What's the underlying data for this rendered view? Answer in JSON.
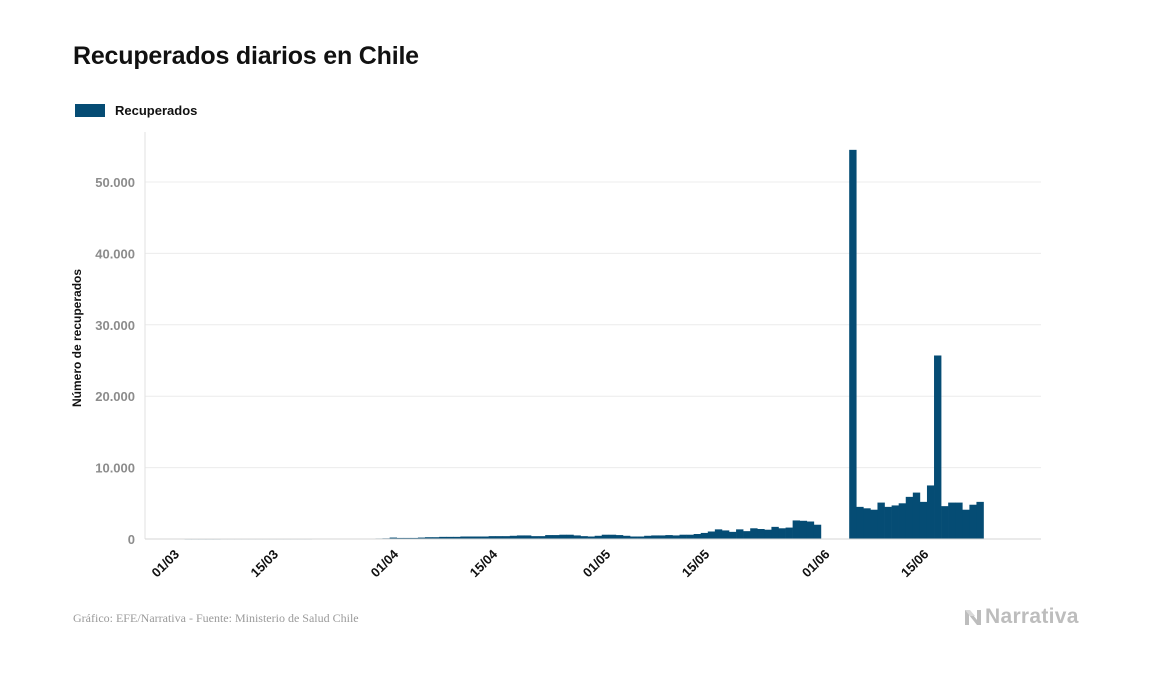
{
  "header": {
    "title": "Recuperados diarios en Chile"
  },
  "legend": {
    "label": "Recuperados"
  },
  "footer": {
    "credit": "Gráfico: EFE/Narrativa - Fuente: Ministerio de Salud Chile",
    "brand": "Narrativa"
  },
  "colors": {
    "bar": "#054c74",
    "grid": "#ececec",
    "ytick": "#8c8c8c",
    "text": "#111111",
    "brand": "#bdbdbd"
  },
  "icons": {
    "brand_logo": "narrativa-n-icon"
  },
  "chart_data": {
    "type": "bar",
    "title": "Recuperados diarios en Chile",
    "xlabel": "",
    "ylabel": "Número de recuperados",
    "ylim": [
      0,
      57000
    ],
    "yticks": [
      0,
      10000,
      20000,
      30000,
      40000,
      50000
    ],
    "ytick_labels": [
      "0",
      "10.000",
      "20.000",
      "30.000",
      "40.000",
      "50.000"
    ],
    "xticks": [
      {
        "date": "2020-03-01",
        "label": "01/03"
      },
      {
        "date": "2020-03-15",
        "label": "15/03"
      },
      {
        "date": "2020-04-01",
        "label": "01/04"
      },
      {
        "date": "2020-04-15",
        "label": "15/04"
      },
      {
        "date": "2020-05-01",
        "label": "01/05"
      },
      {
        "date": "2020-05-15",
        "label": "15/05"
      },
      {
        "date": "2020-06-01",
        "label": "01/06"
      },
      {
        "date": "2020-06-15",
        "label": "15/06"
      }
    ],
    "grid": true,
    "legend_position": "top-left",
    "series": [
      {
        "name": "Recuperados",
        "x": [
          "2020-03-03",
          "2020-03-04",
          "2020-03-05",
          "2020-03-06",
          "2020-03-07",
          "2020-03-08",
          "2020-03-09",
          "2020-03-10",
          "2020-03-11",
          "2020-03-12",
          "2020-03-13",
          "2020-03-14",
          "2020-03-15",
          "2020-03-16",
          "2020-03-17",
          "2020-03-18",
          "2020-03-19",
          "2020-03-20",
          "2020-03-21",
          "2020-03-22",
          "2020-03-23",
          "2020-03-24",
          "2020-03-25",
          "2020-03-26",
          "2020-03-27",
          "2020-03-28",
          "2020-03-29",
          "2020-03-30",
          "2020-03-31",
          "2020-04-01",
          "2020-04-02",
          "2020-04-03",
          "2020-04-04",
          "2020-04-05",
          "2020-04-06",
          "2020-04-07",
          "2020-04-08",
          "2020-04-09",
          "2020-04-10",
          "2020-04-11",
          "2020-04-12",
          "2020-04-13",
          "2020-04-14",
          "2020-04-15",
          "2020-04-16",
          "2020-04-17",
          "2020-04-18",
          "2020-04-19",
          "2020-04-20",
          "2020-04-21",
          "2020-04-22",
          "2020-04-23",
          "2020-04-24",
          "2020-04-25",
          "2020-04-26",
          "2020-04-27",
          "2020-04-28",
          "2020-04-29",
          "2020-04-30",
          "2020-05-01",
          "2020-05-02",
          "2020-05-03",
          "2020-05-04",
          "2020-05-05",
          "2020-05-06",
          "2020-05-07",
          "2020-05-08",
          "2020-05-09",
          "2020-05-10",
          "2020-05-11",
          "2020-05-12",
          "2020-05-13",
          "2020-05-14",
          "2020-05-15",
          "2020-05-16",
          "2020-05-17",
          "2020-05-18",
          "2020-05-19",
          "2020-05-20",
          "2020-05-21",
          "2020-05-22",
          "2020-05-23",
          "2020-05-24",
          "2020-05-25",
          "2020-05-26",
          "2020-05-27",
          "2020-05-28",
          "2020-05-29",
          "2020-05-30",
          "2020-05-31",
          "2020-06-05",
          "2020-06-06",
          "2020-06-07",
          "2020-06-08",
          "2020-06-09",
          "2020-06-10",
          "2020-06-11",
          "2020-06-12",
          "2020-06-13",
          "2020-06-14",
          "2020-06-15",
          "2020-06-16",
          "2020-06-17",
          "2020-06-18",
          "2020-06-19",
          "2020-06-20",
          "2020-06-21",
          "2020-06-22",
          "2020-06-23"
        ],
        "values": [
          5,
          5,
          5,
          5,
          5,
          10,
          10,
          10,
          10,
          10,
          10,
          10,
          10,
          10,
          10,
          10,
          10,
          10,
          20,
          20,
          30,
          30,
          40,
          40,
          50,
          60,
          70,
          80,
          100,
          200,
          150,
          150,
          150,
          200,
          250,
          250,
          300,
          300,
          300,
          350,
          350,
          350,
          350,
          400,
          400,
          400,
          450,
          500,
          500,
          400,
          400,
          550,
          550,
          600,
          600,
          500,
          400,
          350,
          450,
          600,
          600,
          550,
          450,
          350,
          350,
          450,
          500,
          500,
          550,
          500,
          600,
          600,
          700,
          850,
          1050,
          1350,
          1200,
          1000,
          1350,
          1100,
          1500,
          1400,
          1300,
          1700,
          1500,
          1600,
          2600,
          2550,
          2450,
          2000,
          54500,
          4500,
          4300,
          4100,
          5100,
          4500,
          4700,
          5000,
          5900,
          6500,
          5200,
          7500,
          25700,
          4600,
          5100,
          5100,
          4100,
          4800,
          5200
        ]
      }
    ]
  }
}
